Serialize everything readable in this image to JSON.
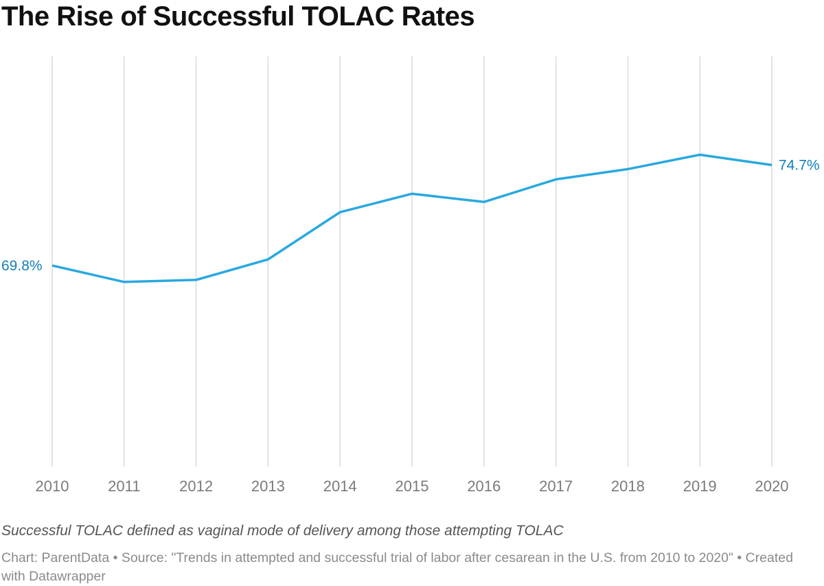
{
  "chart_data": {
    "type": "line",
    "title": "The Rise of Successful TOLAC Rates",
    "categories": [
      "2010",
      "2011",
      "2012",
      "2013",
      "2014",
      "2015",
      "2016",
      "2017",
      "2018",
      "2019",
      "2020"
    ],
    "series": [
      {
        "values": [
          69.8,
          69.0,
          69.1,
          70.1,
          72.4,
          73.3,
          72.9,
          74.0,
          74.5,
          75.2,
          74.7
        ]
      }
    ],
    "data_labels": {
      "first": "69.8%",
      "last": "74.7%"
    },
    "ylim": [
      60,
      80
    ],
    "grid": "vertical",
    "line_color": "#29a8e0",
    "label_color": "#1380b8",
    "xlabel": "",
    "ylabel": ""
  },
  "notes": "Successful TOLAC defined as vaginal mode of delivery among those attempting TOLAC",
  "source": "Chart: ParentData • Source: \"Trends in attempted and successful trial of labor after cesarean in the U.S. from 2010 to 2020\" • Created with Datawrapper"
}
